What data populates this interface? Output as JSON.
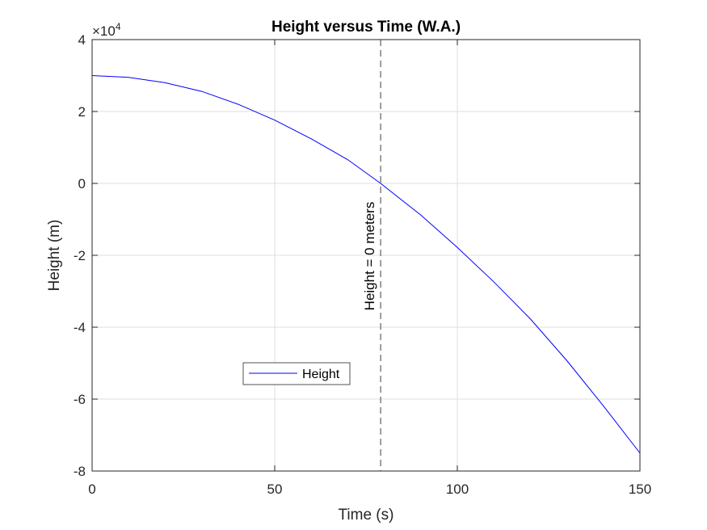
{
  "chart_data": {
    "type": "line",
    "title": "Height versus Time (W.A.)",
    "xlabel": "Time (s)",
    "ylabel": "Height (m)",
    "xlim": [
      0,
      150
    ],
    "ylim": [
      -80000,
      40000
    ],
    "xticks": [
      0,
      50,
      100,
      150
    ],
    "xtick_labels": [
      "0",
      "50",
      "100",
      "150"
    ],
    "yticks": [
      -80000,
      -60000,
      -40000,
      -20000,
      0,
      20000,
      40000
    ],
    "ytick_labels": [
      "-8",
      "-6",
      "-4",
      "-2",
      "0",
      "2",
      "4"
    ],
    "y_exponent_label": "×10",
    "y_exponent_power": "4",
    "grid": true,
    "legend_placement": "lower-left",
    "series": [
      {
        "name": "Height",
        "color": "#0000ff",
        "x": [
          0,
          10,
          20,
          30,
          40,
          50,
          60,
          70,
          79,
          90,
          100,
          110,
          120,
          130,
          140,
          150
        ],
        "y": [
          30000,
          29500,
          28000,
          25600,
          22000,
          17600,
          12400,
          6600,
          0,
          -8800,
          -17800,
          -27400,
          -37700,
          -49300,
          -61900,
          -75000
        ]
      }
    ],
    "vertical_line": {
      "x": 79,
      "label": "Height = 0 meters",
      "color": "#404040"
    }
  }
}
